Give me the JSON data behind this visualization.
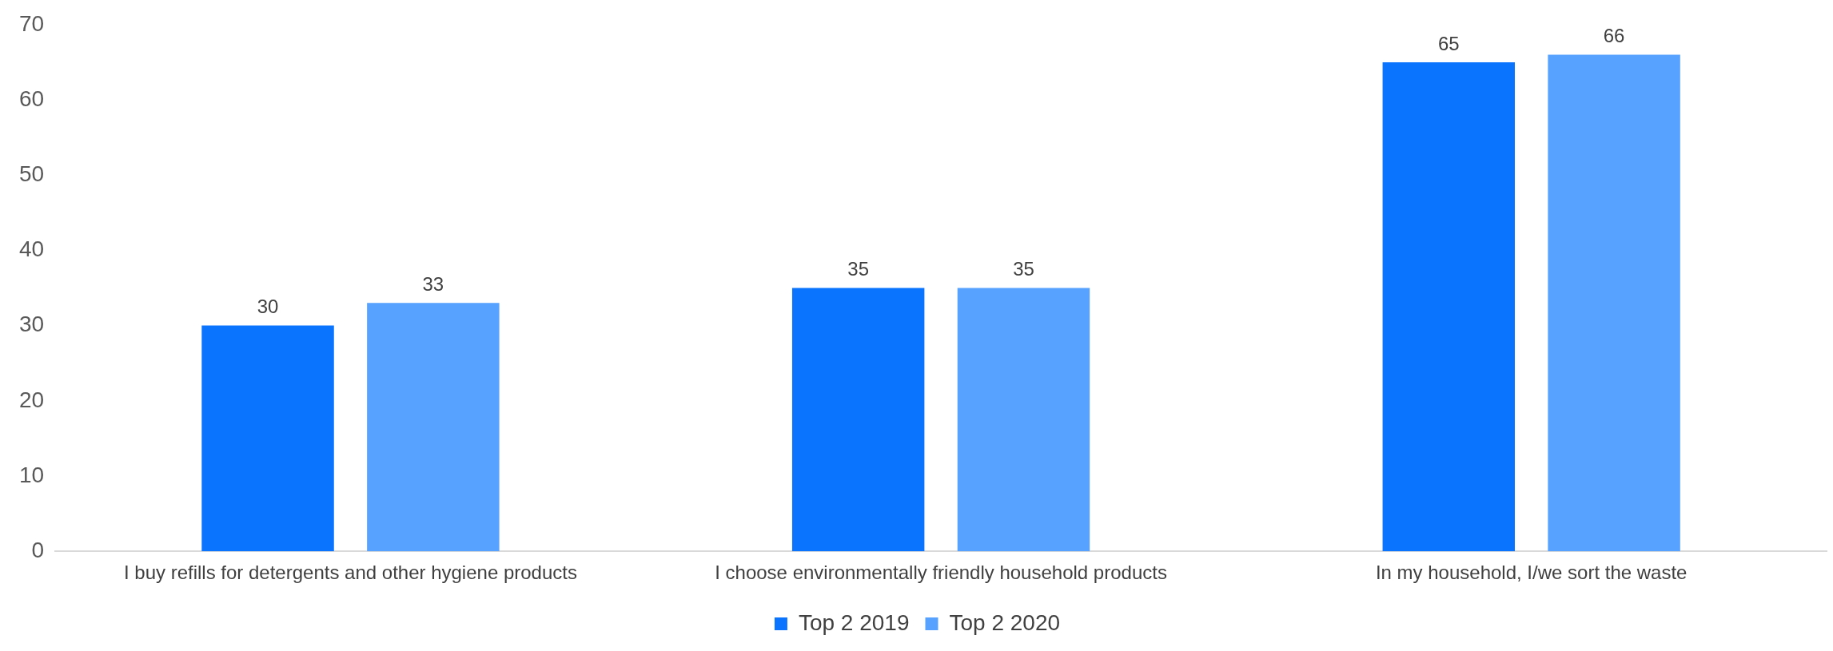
{
  "chart_data": {
    "type": "bar",
    "categories": [
      "I buy refills for detergents and other hygiene products",
      "I choose environmentally friendly household products",
      "In my household, I/we sort the waste"
    ],
    "series": [
      {
        "name": "Top 2 2019",
        "color": "#0a74ff",
        "values": [
          30,
          35,
          65
        ]
      },
      {
        "name": "Top 2 2020",
        "color": "#57a2ff",
        "values": [
          33,
          35,
          66
        ]
      }
    ],
    "ylim": [
      0,
      70
    ],
    "yticks": [
      0,
      10,
      20,
      30,
      40,
      50,
      60,
      70
    ],
    "grid": false,
    "legend": "bottom",
    "data_labels": true
  }
}
